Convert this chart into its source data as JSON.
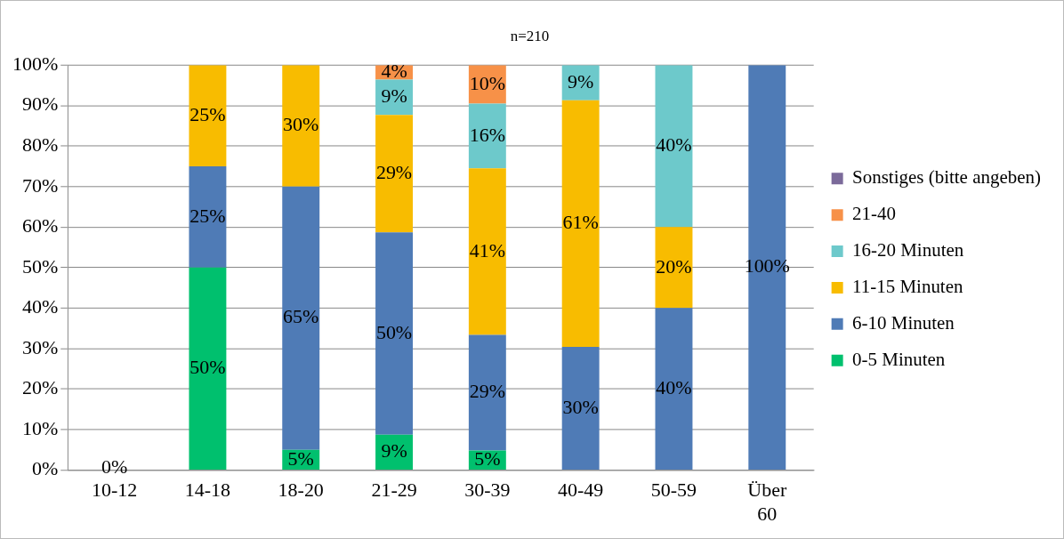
{
  "chart_data": {
    "type": "bar",
    "title": "n=210",
    "stacked": true,
    "categories": [
      "10-12",
      "14-18",
      "18-20",
      "21-29",
      "30-39",
      "40-49",
      "50-59",
      "Über 60"
    ],
    "series": [
      {
        "name": "0-5 Minuten",
        "color": "#00c06e",
        "values": [
          0,
          50,
          5,
          8.7,
          4.8,
          0,
          0,
          0
        ],
        "value_labels": [
          "0%",
          "50%",
          "5%",
          "9%",
          "5%",
          null,
          null,
          null
        ]
      },
      {
        "name": "6-10 Minuten",
        "color": "#4f7bb6",
        "values": [
          0,
          25,
          65,
          50,
          28.6,
          30.4,
          40,
          100
        ],
        "value_labels": [
          null,
          "25%",
          "65%",
          "50%",
          "29%",
          "30%",
          "40%",
          "100%"
        ]
      },
      {
        "name": "11-15 Minuten",
        "color": "#f8bc00",
        "values": [
          0,
          25,
          30,
          29,
          41.1,
          60.9,
          20,
          0
        ],
        "value_labels": [
          null,
          "25%",
          "30%",
          "29%",
          "41%",
          "61%",
          "20%",
          null
        ]
      },
      {
        "name": "16-20 Minuten",
        "color": "#6dc9cb",
        "values": [
          0,
          0,
          0,
          8.7,
          16,
          8.7,
          40,
          0
        ],
        "value_labels": [
          null,
          null,
          null,
          "9%",
          "16%",
          "9%",
          "40%",
          null
        ]
      },
      {
        "name": "21-40",
        "color": "#f79148",
        "values": [
          0,
          0,
          0,
          3.6,
          9.5,
          0,
          0,
          0
        ],
        "value_labels": [
          null,
          null,
          null,
          "4%",
          "10%",
          null,
          null,
          null
        ]
      },
      {
        "name": "Sonstiges (bitte angeben)",
        "color": "#7b6a9a",
        "values": [
          0,
          0,
          0,
          0,
          0,
          0,
          0,
          0
        ]
      }
    ],
    "ylim": [
      0,
      100
    ],
    "yticks": [
      {
        "value": 0,
        "label": "0%"
      },
      {
        "value": 10,
        "label": "10%"
      },
      {
        "value": 20,
        "label": "20%"
      },
      {
        "value": 30,
        "label": "30%"
      },
      {
        "value": 40,
        "label": "40%"
      },
      {
        "value": 50,
        "label": "50%"
      },
      {
        "value": 60,
        "label": "60%"
      },
      {
        "value": 70,
        "label": "70%"
      },
      {
        "value": 80,
        "label": "80%"
      },
      {
        "value": 90,
        "label": "90%"
      },
      {
        "value": 100,
        "label": "100%"
      }
    ],
    "grid": "y",
    "legend": "right"
  }
}
